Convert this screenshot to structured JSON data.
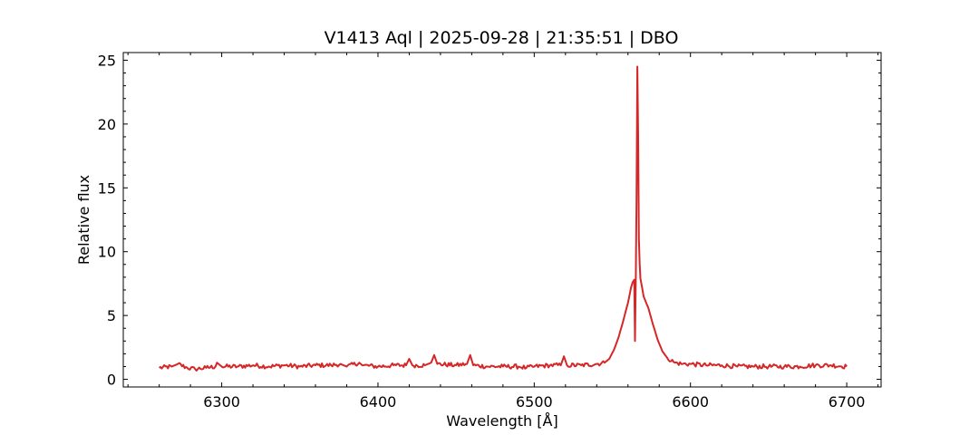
{
  "chart_data": {
    "type": "line",
    "title": "V1413 Aql | 2025-09-28 | 21:35:51 | DBO",
    "xlabel": "Wavelength [Å]",
    "ylabel": "Relative flux",
    "xlim": [
      6237,
      6722
    ],
    "ylim": [
      -0.6,
      25.6
    ],
    "xticks": [
      6300,
      6400,
      6500,
      6600,
      6700
    ],
    "yticks": [
      0,
      5,
      10,
      15,
      20,
      25
    ],
    "grid": false,
    "series": [
      {
        "color": "#d62728",
        "x": [
          6260,
          6268,
          6272,
          6278,
          6283,
          6290,
          6296,
          6297,
          6300,
          6310,
          6320,
          6330,
          6340,
          6350,
          6360,
          6370,
          6376,
          6380,
          6388,
          6390,
          6400,
          6410,
          6418,
          6420,
          6422,
          6430,
          6434,
          6436,
          6438,
          6450,
          6457,
          6459,
          6461,
          6470,
          6480,
          6490,
          6495,
          6500,
          6510,
          6517,
          6519,
          6521,
          6530,
          6540,
          6545,
          6548,
          6551,
          6554,
          6557,
          6560,
          6562,
          6563,
          6564,
          6564.5,
          6565,
          6565.5,
          6566,
          6566.5,
          6567,
          6567.5,
          6568,
          6569,
          6570,
          6573,
          6576,
          6579,
          6582,
          6585,
          6590,
          6595,
          6600,
          6610,
          6620,
          6630,
          6640,
          6650,
          6660,
          6670,
          6680,
          6690,
          6700
        ],
        "y": [
          0.9,
          1.0,
          1.2,
          0.9,
          0.8,
          0.9,
          1.0,
          1.3,
          1.0,
          1.0,
          1.1,
          1.0,
          1.1,
          1.0,
          1.1,
          1.1,
          1.2,
          1.0,
          1.3,
          1.1,
          1.0,
          1.1,
          1.1,
          1.6,
          1.1,
          1.1,
          1.3,
          1.9,
          1.2,
          1.1,
          1.2,
          1.9,
          1.1,
          1.0,
          1.0,
          1.0,
          0.9,
          1.0,
          1.1,
          1.1,
          1.8,
          1.1,
          1.1,
          1.2,
          1.3,
          1.6,
          2.3,
          3.3,
          4.6,
          6.0,
          7.2,
          7.6,
          7.8,
          3.0,
          8.0,
          14.0,
          24.5,
          19.0,
          11.0,
          9.0,
          7.9,
          7.2,
          6.5,
          5.6,
          4.3,
          3.1,
          2.2,
          1.7,
          1.3,
          1.2,
          1.2,
          1.1,
          1.1,
          1.0,
          1.0,
          1.0,
          1.0,
          1.0,
          1.1,
          1.1,
          1.0
        ]
      }
    ]
  }
}
